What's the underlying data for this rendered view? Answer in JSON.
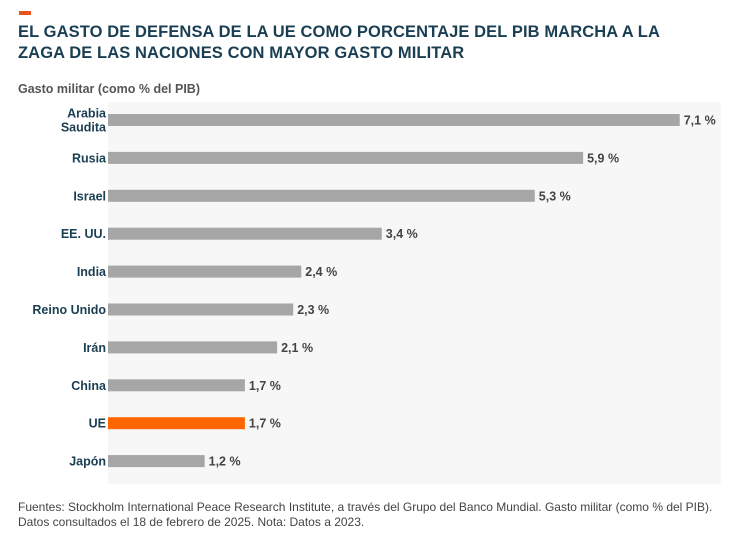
{
  "header": {
    "title": "EL GASTO DE DEFENSA DE LA UE COMO PORCENTAJE DEL PIB MARCHA A LA ZAGA DE LAS NACIONES CON MAYOR GASTO MILITAR"
  },
  "colors": {
    "accent": "#e8541c",
    "bar_default": "#a6a6a6",
    "bar_highlight": "#ff6600",
    "plot_background": "#f7f7f7",
    "title": "#1a3e52"
  },
  "chart_data": {
    "type": "bar",
    "orientation": "horizontal",
    "title": "EL GASTO DE DEFENSA DE LA UE COMO PORCENTAJE DEL PIB MARCHA A LA ZAGA DE LAS NACIONES CON MAYOR GASTO MILITAR",
    "ylabel": "Gasto militar (como % del PIB)",
    "xlim": [
      0,
      7.6
    ],
    "grid": false,
    "categories": [
      "Arabia Saudita",
      "Rusia",
      "Israel",
      "EE. UU.",
      "India",
      "Reino Unido",
      "Irán",
      "China",
      "UE",
      "Japón"
    ],
    "category_lines": [
      [
        "Arabia",
        "Saudita"
      ],
      [
        "Rusia"
      ],
      [
        "Israel"
      ],
      [
        "EE. UU."
      ],
      [
        "India"
      ],
      [
        "Reino Unido"
      ],
      [
        "Irán"
      ],
      [
        "China"
      ],
      [
        "UE"
      ],
      [
        "Japón"
      ]
    ],
    "values": [
      7.1,
      5.9,
      5.3,
      3.4,
      2.4,
      2.3,
      2.1,
      1.7,
      1.7,
      1.2
    ],
    "value_labels": [
      "7,1 %",
      "5,9 %",
      "5,3 %",
      "3,4 %",
      "2,4 %",
      "2,3 %",
      "2,1 %",
      "1,7 %",
      "1,7 %",
      "1,2 %"
    ],
    "highlight": "UE"
  },
  "footer": {
    "source_line1": "Fuentes: Stockholm International Peace Research Institute, a través del Grupo del Banco Mundial. Gasto militar (como % del PIB).",
    "source_line2": "Datos consultados el 18 de febrero de 2025. Nota: Datos a 2023."
  }
}
